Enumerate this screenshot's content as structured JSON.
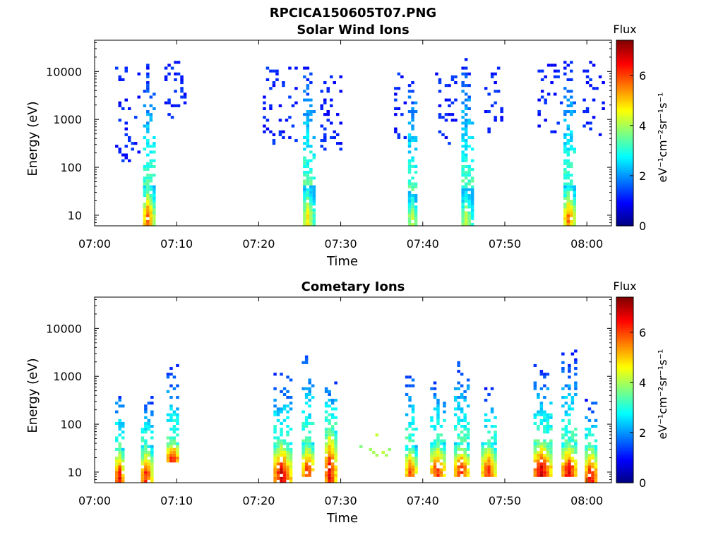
{
  "figure": {
    "filename": "RPCICA150605T07.PNG"
  },
  "colormap": [
    "#00007f",
    "#0000ff",
    "#007fff",
    "#00ffff",
    "#7fff7f",
    "#ffff00",
    "#ff7f00",
    "#ff0000",
    "#7f0000"
  ],
  "chart_data": [
    {
      "type": "heatmap",
      "title": "Solar Wind Ions",
      "xlabel": "Time",
      "ylabel": "Energy (eV)",
      "y_scale": "log",
      "xlim": [
        "07:00",
        "08:03"
      ],
      "ylim": [
        6,
        45000
      ],
      "x_ticks": [
        "07:00",
        "07:10",
        "07:20",
        "07:30",
        "07:40",
        "07:50",
        "08:00"
      ],
      "y_ticks": [
        "10",
        "100",
        "1000",
        "10000"
      ],
      "colorbar": {
        "label": "Flux",
        "units": "eV⁻¹cm⁻²sr⁻¹s⁻¹",
        "range": [
          0,
          7.4
        ],
        "ticks": [
          "0",
          "2",
          "4",
          "6"
        ]
      },
      "bursts": [
        {
          "time": "07:06.5",
          "width_min": 1.2,
          "core_emin": 6,
          "core_emax": 40,
          "core_flux": 6.2,
          "tail_emax": 14000,
          "density": 0.9
        },
        {
          "time": "07:26.0",
          "width_min": 1.2,
          "core_emin": 6,
          "core_emax": 40,
          "core_flux": 5.2,
          "tail_emax": 14000,
          "density": 0.9
        },
        {
          "time": "07:38.7",
          "width_min": 1.0,
          "core_emin": 6,
          "core_emax": 30,
          "core_flux": 4.8,
          "tail_emax": 11000,
          "density": 0.85
        },
        {
          "time": "07:45.3",
          "width_min": 1.2,
          "core_emin": 6,
          "core_emax": 35,
          "core_flux": 4.6,
          "tail_emax": 22000,
          "density": 0.85
        },
        {
          "time": "07:57.8",
          "width_min": 1.3,
          "core_emin": 6,
          "core_emax": 40,
          "core_flux": 6.0,
          "tail_emax": 18000,
          "density": 0.9
        }
      ],
      "scatter_bands": [
        {
          "t0": "07:02.5",
          "t1": "07:05.5",
          "emin": 120,
          "emax": 12000,
          "flux": 1.0,
          "density": 0.12
        },
        {
          "t0": "07:08.5",
          "t1": "07:11.0",
          "emin": 1000,
          "emax": 17000,
          "flux": 1.0,
          "density": 0.18
        },
        {
          "t0": "07:20.5",
          "t1": "07:24.5",
          "emin": 300,
          "emax": 12000,
          "flux": 1.0,
          "density": 0.14
        },
        {
          "t0": "07:27.5",
          "t1": "07:30.0",
          "emin": 200,
          "emax": 8000,
          "flux": 1.0,
          "density": 0.16
        },
        {
          "t0": "07:36.5",
          "t1": "07:38.0",
          "emin": 400,
          "emax": 10000,
          "flux": 1.0,
          "density": 0.12
        },
        {
          "t0": "07:41.5",
          "t1": "07:44.0",
          "emin": 300,
          "emax": 10000,
          "flux": 1.0,
          "density": 0.14
        },
        {
          "t0": "07:47.5",
          "t1": "07:49.5",
          "emin": 500,
          "emax": 12000,
          "flux": 1.0,
          "density": 0.14
        },
        {
          "t0": "07:54.0",
          "t1": "07:57.0",
          "emin": 500,
          "emax": 14000,
          "flux": 1.0,
          "density": 0.14
        },
        {
          "t0": "07:59.5",
          "t1": "08:02.0",
          "emin": 300,
          "emax": 17000,
          "flux": 1.0,
          "density": 0.14
        }
      ]
    },
    {
      "type": "heatmap",
      "title": "Cometary Ions",
      "xlabel": "Time",
      "ylabel": "Energy (eV)",
      "y_scale": "log",
      "xlim": [
        "07:00",
        "08:03"
      ],
      "ylim": [
        6,
        45000
      ],
      "x_ticks": [
        "07:00",
        "07:10",
        "07:20",
        "07:30",
        "07:40",
        "07:50",
        "08:00"
      ],
      "y_ticks": [
        "10",
        "100",
        "1000",
        "10000"
      ],
      "colorbar": {
        "label": "Flux",
        "units": "eV⁻¹cm⁻²sr⁻¹s⁻¹",
        "range": [
          0,
          7.4
        ],
        "ticks": [
          "0",
          "2",
          "4",
          "6"
        ]
      },
      "bursts": [
        {
          "time": "07:03.0",
          "width_min": 1.0,
          "core_emin": 6,
          "core_emax": 30,
          "core_flux": 7.0,
          "tail_emax": 700,
          "density": 0.7
        },
        {
          "time": "07:06.3",
          "width_min": 1.3,
          "core_emin": 6,
          "core_emax": 35,
          "core_flux": 6.6,
          "tail_emax": 400,
          "density": 0.7
        },
        {
          "time": "07:09.5",
          "width_min": 1.5,
          "core_emin": 15,
          "core_emax": 45,
          "core_flux": 7.0,
          "tail_emax": 1700,
          "density": 0.7
        },
        {
          "time": "07:22.8",
          "width_min": 2.0,
          "core_emin": 6,
          "core_emax": 40,
          "core_flux": 7.2,
          "tail_emax": 1200,
          "density": 0.75
        },
        {
          "time": "07:26.0",
          "width_min": 1.5,
          "core_emin": 8,
          "core_emax": 40,
          "core_flux": 6.6,
          "tail_emax": 3600,
          "density": 0.7
        },
        {
          "time": "07:28.7",
          "width_min": 1.3,
          "core_emin": 6,
          "core_emax": 90,
          "core_flux": 7.0,
          "tail_emax": 900,
          "density": 0.75
        },
        {
          "time": "07:38.5",
          "width_min": 1.3,
          "core_emin": 8,
          "core_emax": 35,
          "core_flux": 6.4,
          "tail_emax": 1600,
          "density": 0.65
        },
        {
          "time": "07:41.8",
          "width_min": 1.8,
          "core_emin": 8,
          "core_emax": 40,
          "core_flux": 6.6,
          "tail_emax": 1100,
          "density": 0.65
        },
        {
          "time": "07:44.7",
          "width_min": 1.8,
          "core_emin": 8,
          "core_emax": 40,
          "core_flux": 6.6,
          "tail_emax": 2500,
          "density": 0.7
        },
        {
          "time": "07:48.0",
          "width_min": 1.8,
          "core_emin": 8,
          "core_emax": 40,
          "core_flux": 6.4,
          "tail_emax": 600,
          "density": 0.65
        },
        {
          "time": "07:54.5",
          "width_min": 2.0,
          "core_emin": 8,
          "core_emax": 45,
          "core_flux": 7.2,
          "tail_emax": 1800,
          "density": 0.75
        },
        {
          "time": "07:57.8",
          "width_min": 1.8,
          "core_emin": 8,
          "core_emax": 40,
          "core_flux": 7.0,
          "tail_emax": 3600,
          "density": 0.7
        },
        {
          "time": "08:00.5",
          "width_min": 1.5,
          "core_emin": 6,
          "core_emax": 35,
          "core_flux": 7.0,
          "tail_emax": 350,
          "density": 0.65
        }
      ],
      "scatter_bands": [
        {
          "t0": "07:31.5",
          "t1": "07:37.0",
          "emin": 20,
          "emax": 60,
          "flux": 3.8,
          "density": 0.04
        }
      ]
    }
  ]
}
